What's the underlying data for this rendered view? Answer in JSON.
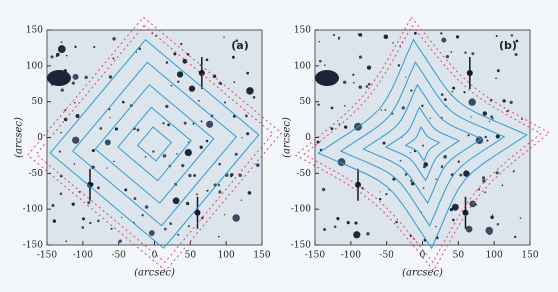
{
  "chart_data": [
    {
      "type": "image",
      "label": "(a)",
      "x_label": "(arcsec)",
      "y_label": "(arcsec)",
      "xlim": [
        -150,
        150
      ],
      "ylim": [
        -150,
        150
      ],
      "xticks": [
        -150,
        -100,
        -50,
        0,
        50,
        100,
        150
      ],
      "yticks": [
        150,
        100,
        50,
        0,
        -50,
        -100,
        -150
      ]
    },
    {
      "type": "image",
      "label": "(b)",
      "x_label": "(arcsec)",
      "y_label": "(arcsec)",
      "xlim": [
        -150,
        150
      ],
      "ylim": [
        -150,
        150
      ],
      "xticks": [
        -150,
        -100,
        -50,
        0,
        50,
        100,
        150
      ],
      "yticks": [
        150,
        100,
        50,
        0,
        -50,
        -100,
        -150
      ]
    }
  ]
}
